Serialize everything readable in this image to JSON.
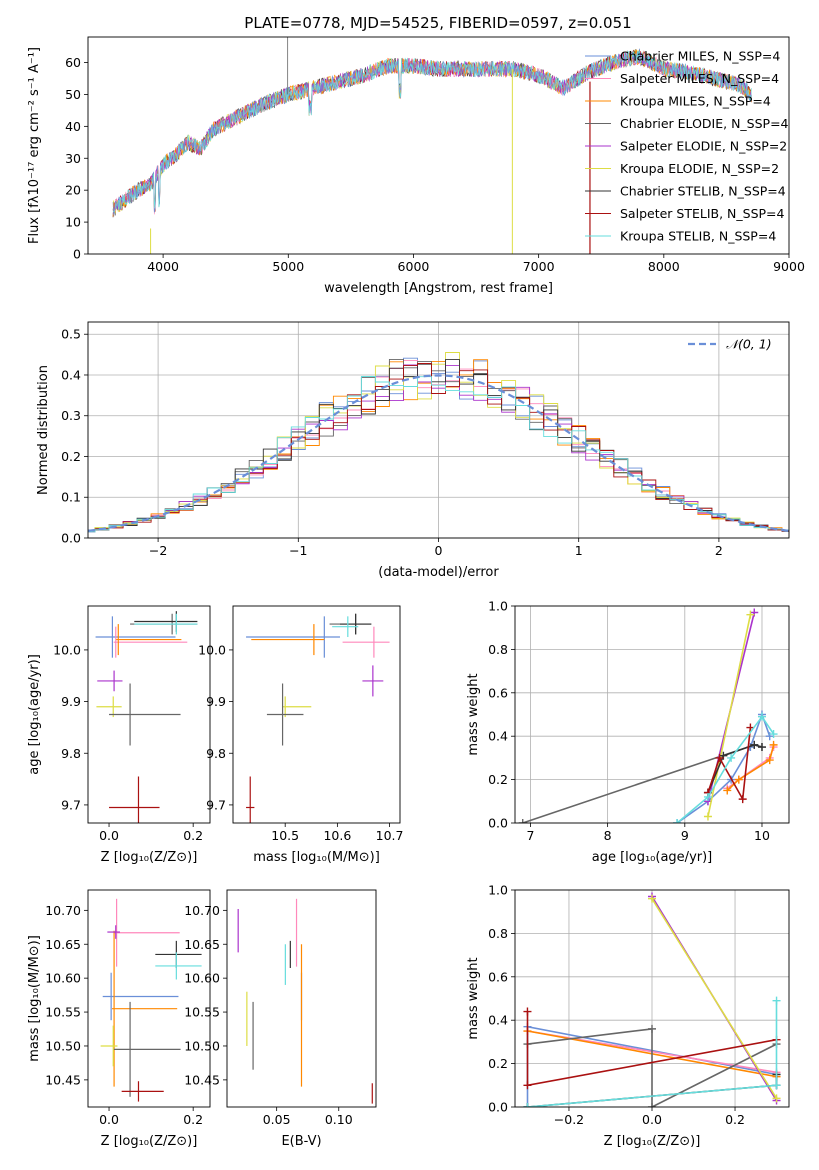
{
  "title": "PLATE=0778, MJD=54525, FIBERID=0597, z=0.051",
  "colors": {
    "series": [
      "#6a8fd8",
      "#ff88bb",
      "#ff8800",
      "#666666",
      "#aa33cc",
      "#dddd44",
      "#333333",
      "#aa1111",
      "#66dddd"
    ]
  },
  "chart_data": [
    {
      "id": "spectrum",
      "type": "line",
      "xlabel": "wavelength [Angstrom, rest frame]",
      "ylabel": "Flux [fλ10⁻¹⁷ erg cm⁻² s⁻¹ A⁻¹]",
      "xlim": [
        3400,
        9000
      ],
      "ylim": [
        0,
        68
      ],
      "xticks": [
        "4000",
        "5000",
        "6000",
        "7000",
        "8000",
        "9000"
      ],
      "yticks": [
        "0",
        "10",
        "20",
        "30",
        "40",
        "50",
        "60"
      ],
      "legend_position": "right",
      "series": [
        {
          "name": "Chabrier MILES, N_SSP=4"
        },
        {
          "name": "Salpeter MILES, N_SSP=4"
        },
        {
          "name": "Kroupa MILES, N_SSP=4"
        },
        {
          "name": "Chabrier ELODIE, N_SSP=4"
        },
        {
          "name": "Salpeter ELODIE, N_SSP=2"
        },
        {
          "name": "Kroupa ELODIE, N_SSP=2"
        },
        {
          "name": "Chabrier STELIB, N_SSP=4"
        },
        {
          "name": "Salpeter STELIB, N_SSP=4"
        },
        {
          "name": "Kroupa STELIB, N_SSP=4"
        }
      ],
      "continuum": {
        "x": [
          3600,
          3700,
          3800,
          3900,
          4000,
          4100,
          4200,
          4300,
          4400,
          4600,
          4800,
          5000,
          5200,
          5400,
          5600,
          5800,
          6000,
          6200,
          6400,
          6600,
          6800,
          7000,
          7200,
          7400,
          7600,
          7800,
          8000,
          8200,
          8400,
          8600,
          8700
        ],
        "y": [
          14,
          17,
          20,
          22,
          28,
          31,
          35,
          33,
          39,
          43,
          47,
          50,
          52,
          54,
          56,
          59,
          59,
          58,
          58,
          58,
          58,
          56,
          52,
          57,
          60,
          62,
          58,
          57,
          55,
          53,
          50
        ]
      }
    },
    {
      "id": "residuals",
      "type": "line",
      "xlabel": "(data-model)/error",
      "ylabel": "Normed distribution",
      "xlim": [
        -2.5,
        2.5
      ],
      "ylim": [
        0,
        0.53
      ],
      "xticks": [
        "−2",
        "−1",
        "0",
        "1",
        "2"
      ],
      "yticks": [
        "0.0",
        "0.1",
        "0.2",
        "0.3",
        "0.4",
        "0.5"
      ],
      "grid": true,
      "legend": "𝒩(0, 1)",
      "legend_position": "top-right",
      "gaussian": {
        "mean": 0,
        "sigma": 1
      },
      "hist_bin_width": 0.1
    },
    {
      "id": "age-vs-Z",
      "type": "scatter",
      "xlabel": "Z [log₁₀(Z/Z⊙)]",
      "ylabel": "age  [log₁₀(age/yr)]",
      "xlim": [
        -0.05,
        0.24
      ],
      "ylim": [
        9.665,
        10.085
      ],
      "xticks": [
        "0.0",
        "0.2"
      ],
      "yticks": [
        "9.7",
        "9.8",
        "9.9",
        "10.0"
      ],
      "points": [
        {
          "x": 0.008,
          "y": 10.025,
          "xerr": [
            0.04,
            0.15
          ],
          "yerr": 0.04
        },
        {
          "x": 0.016,
          "y": 10.015,
          "xerr": [
            0.005,
            0.17
          ],
          "yerr": 0.03
        },
        {
          "x": 0.022,
          "y": 10.02,
          "xerr": [
            0.005,
            0.15
          ],
          "yerr": 0.03
        },
        {
          "x": 0.15,
          "y": 10.05,
          "xerr": [
            0.1,
            0.06
          ],
          "yerr": 0.02
        },
        {
          "x": 0.012,
          "y": 9.94,
          "xerr": [
            0.04,
            0.02
          ],
          "yerr": 0.02
        },
        {
          "x": 0.01,
          "y": 9.89,
          "xerr": [
            0.04,
            0.02
          ],
          "yerr": 0.02
        },
        {
          "x": 0.16,
          "y": 10.055,
          "xerr": [
            0.1,
            0.05
          ],
          "yerr": 0.02
        },
        {
          "x": 0.07,
          "y": 9.695,
          "xerr": [
            0.07,
            0.05
          ],
          "yerr": 0.06
        },
        {
          "x": 0.16,
          "y": 10.05,
          "xerr": [
            0.1,
            0.05
          ],
          "yerr": 0.02
        }
      ],
      "extra": [
        {
          "x": 0.05,
          "y": 9.875,
          "xerr": [
            0.05,
            0.12
          ],
          "yerr": 0.06,
          "series": 3
        }
      ]
    },
    {
      "id": "age-vs-mass",
      "type": "scatter",
      "xlabel": "mass [log₁₀(M/M⊙)]",
      "ylabel": "",
      "xlim": [
        10.4,
        10.72
      ],
      "ylim": [
        9.665,
        10.085
      ],
      "xticks": [
        "10.5",
        "10.6",
        "10.7"
      ],
      "yticks": [
        "9.7",
        "9.8",
        "9.9",
        "10.0"
      ],
      "points": [
        {
          "x": 10.575,
          "y": 10.025,
          "xerr": [
            0.15,
            0.03
          ],
          "yerr": 0.04
        },
        {
          "x": 10.67,
          "y": 10.015,
          "xerr": [
            0.06,
            0.03
          ],
          "yerr": 0.03
        },
        {
          "x": 10.555,
          "y": 10.02,
          "xerr": [
            0.12,
            0.02
          ],
          "yerr": 0.03
        },
        {
          "x": 10.635,
          "y": 10.05,
          "xerr": [
            0.05,
            0.03
          ],
          "yerr": 0.02
        },
        {
          "x": 10.668,
          "y": 9.94,
          "xerr": [
            0.02,
            0.02
          ],
          "yerr": 0.03
        },
        {
          "x": 10.5,
          "y": 9.89,
          "xerr": [
            0.005,
            0.05
          ],
          "yerr": 0.02
        },
        {
          "x": 10.635,
          "y": 10.05,
          "xerr": [
            0.03,
            0.03
          ],
          "yerr": 0.02
        },
        {
          "x": 10.433,
          "y": 9.695,
          "xerr": [
            0.008,
            0.008
          ],
          "yerr": 0.06
        },
        {
          "x": 10.62,
          "y": 10.045,
          "xerr": [
            0.03,
            0.02
          ],
          "yerr": 0.02
        }
      ],
      "extra": [
        {
          "x": 10.495,
          "y": 9.875,
          "xerr": [
            0.03,
            0.04
          ],
          "yerr": 0.06,
          "series": 3
        }
      ]
    },
    {
      "id": "weight-vs-age",
      "type": "line",
      "xlabel": "age  [log₁₀(age/yr)]",
      "ylabel": "mass weight",
      "xlim": [
        6.8,
        10.35
      ],
      "ylim": [
        0,
        1
      ],
      "xticks": [
        "7",
        "8",
        "9",
        "10"
      ],
      "yticks": [
        "0.0",
        "0.2",
        "0.4",
        "0.6",
        "0.8",
        "1.0"
      ],
      "grid": true,
      "series": [
        {
          "x": [
            8.9,
            9.3,
            9.6,
            9.85,
            10.0,
            10.1
          ],
          "y": [
            0.0,
            0.1,
            0.2,
            0.35,
            0.5,
            0.4
          ]
        },
        {
          "x": [
            9.55,
            9.7,
            10.1,
            10.15
          ],
          "y": [
            0.16,
            0.2,
            0.3,
            0.35
          ]
        },
        {
          "x": [
            9.55,
            9.7,
            10.1,
            10.15
          ],
          "y": [
            0.15,
            0.2,
            0.29,
            0.36
          ]
        },
        {
          "x": [
            6.9,
            9.9,
            10.0
          ],
          "y": [
            0.0,
            0.36,
            0.35
          ]
        },
        {
          "x": [
            9.3,
            9.9
          ],
          "y": [
            0.1,
            0.97
          ]
        },
        {
          "x": [
            9.3,
            9.85
          ],
          "y": [
            0.03,
            0.96
          ]
        },
        {
          "x": [
            9.3,
            9.5,
            9.9,
            10.0
          ],
          "y": [
            0.14,
            0.31,
            0.36,
            0.35
          ]
        },
        {
          "x": [
            9.3,
            9.45,
            9.75,
            9.85
          ],
          "y": [
            0.14,
            0.3,
            0.11,
            0.44
          ]
        },
        {
          "x": [
            8.9,
            9.3,
            9.6,
            10.0,
            10.15
          ],
          "y": [
            0.0,
            0.12,
            0.3,
            0.49,
            0.41
          ]
        }
      ]
    },
    {
      "id": "mass-vs-Z",
      "type": "scatter",
      "xlabel": "Z [log₁₀(Z/Z⊙)]",
      "ylabel": "mass [log₁₀(M/M⊙)]",
      "xlim": [
        -0.05,
        0.24
      ],
      "ylim": [
        10.41,
        10.73
      ],
      "xticks": [
        "0.0",
        "0.2"
      ],
      "yticks": [
        "10.45",
        "10.50",
        "10.55",
        "10.60",
        "10.65",
        "10.70"
      ],
      "points": [
        {
          "x": 0.005,
          "y": 10.573,
          "xerr": [
            0.02,
            0.16
          ],
          "yerr": 0.035
        },
        {
          "x": 0.018,
          "y": 10.667,
          "xerr": [
            0.005,
            0.15
          ],
          "yerr": 0.05
        },
        {
          "x": 0.012,
          "y": 10.555,
          "xerr": [
            0.005,
            0.15
          ],
          "yerr": 0.115
        },
        {
          "x": 0.05,
          "y": 10.495,
          "xerr": [
            0.04,
            0.12
          ],
          "yerr": 0.07
        },
        {
          "x": 0.016,
          "y": 10.668,
          "xerr": [
            0.02,
            0.01
          ],
          "yerr": 0.01
        },
        {
          "x": 0.01,
          "y": 10.5,
          "xerr": [
            0.03,
            0.01
          ],
          "yerr": 0.03
        },
        {
          "x": 0.16,
          "y": 10.635,
          "xerr": [
            0.05,
            0.06
          ],
          "yerr": 0.02
        },
        {
          "x": 0.07,
          "y": 10.433,
          "xerr": [
            0.04,
            0.06
          ],
          "yerr": 0.015
        },
        {
          "x": 0.16,
          "y": 10.618,
          "xerr": [
            0.05,
            0.06
          ],
          "yerr": 0.02
        }
      ]
    },
    {
      "id": "mass-vs-EBV",
      "type": "scatter",
      "xlabel": "E(B-V)",
      "ylabel": "",
      "xlim": [
        0.01,
        0.13
      ],
      "ylim": [
        10.41,
        10.73
      ],
      "xticks": [
        "0.05",
        "0.10"
      ],
      "yticks": [
        "10.45",
        "10.50",
        "10.55",
        "10.60",
        "10.65",
        "10.70"
      ],
      "points": [
        {
          "x": 0.07,
          "y": 10.573,
          "yerr": 0.035
        },
        {
          "x": 0.066,
          "y": 10.667,
          "yerr": 0.05
        },
        {
          "x": 0.07,
          "y": 10.545,
          "yerr": 0.105
        },
        {
          "x": 0.031,
          "y": 10.515,
          "yerr": 0.05
        },
        {
          "x": 0.019,
          "y": 10.67,
          "yerr": 0.032
        },
        {
          "x": 0.026,
          "y": 10.54,
          "yerr": 0.04
        },
        {
          "x": 0.061,
          "y": 10.635,
          "yerr": 0.02
        },
        {
          "x": 0.127,
          "y": 10.43,
          "yerr": 0.015
        },
        {
          "x": 0.057,
          "y": 10.62,
          "yerr": 0.03
        }
      ]
    },
    {
      "id": "weight-vs-Z",
      "type": "line",
      "xlabel": "Z [log₁₀(Z/Z⊙)]",
      "ylabel": "mass weight",
      "xlim": [
        -0.33,
        0.33
      ],
      "ylim": [
        0,
        1
      ],
      "xticks": [
        "−0.2",
        "0.0",
        "0.2"
      ],
      "yticks": [
        "0.0",
        "0.2",
        "0.4",
        "0.6",
        "0.8",
        "1.0"
      ],
      "grid": true,
      "series": [
        {
          "x": [
            -0.3,
            -0.3,
            0.3,
            0.3
          ],
          "y": [
            0.0,
            0.37,
            0.15,
            0.1
          ]
        },
        {
          "x": [
            -0.3,
            0.3
          ],
          "y": [
            0.35,
            0.16
          ]
        },
        {
          "x": [
            -0.3,
            0.3
          ],
          "y": [
            0.35,
            0.14
          ]
        },
        {
          "x": [
            -0.3,
            0.0,
            0.0,
            0.3
          ],
          "y": [
            0.29,
            0.36,
            0.0,
            0.29
          ]
        },
        {
          "x": [
            0.0,
            0.3
          ],
          "y": [
            0.97,
            0.03
          ]
        },
        {
          "x": [
            0.0,
            0.3
          ],
          "y": [
            0.96,
            0.04
          ]
        },
        {
          "x": [
            -0.3,
            0.3,
            0.3
          ],
          "y": [
            0.0,
            0.1,
            0.15
          ]
        },
        {
          "x": [
            -0.3,
            -0.3,
            0.3
          ],
          "y": [
            0.44,
            0.1,
            0.31
          ]
        },
        {
          "x": [
            -0.3,
            0.3,
            0.3
          ],
          "y": [
            0.0,
            0.1,
            0.49
          ]
        }
      ]
    }
  ]
}
